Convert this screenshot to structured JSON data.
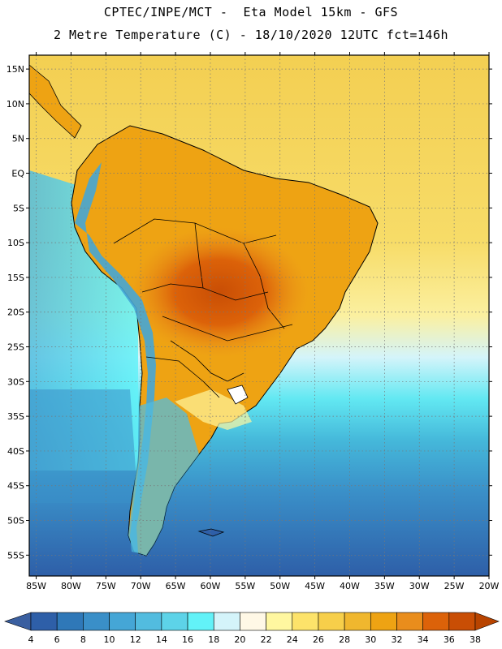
{
  "title": {
    "line1": "CPTEC/INPE/MCT -  Eta Model 15km - GFS",
    "line2": "2 Metre Temperature (C) - 18/10/2020 12UTC fct=146h"
  },
  "map": {
    "lat_range": [
      -58,
      17
    ],
    "lon_range": [
      -86,
      -20
    ],
    "lat_labels": [
      "15N",
      "10N",
      "5N",
      "EQ",
      "5S",
      "10S",
      "15S",
      "20S",
      "25S",
      "30S",
      "35S",
      "40S",
      "45S",
      "50S",
      "55S"
    ],
    "lat_values": [
      15,
      10,
      5,
      0,
      -5,
      -10,
      -15,
      -20,
      -25,
      -30,
      -35,
      -40,
      -45,
      -50,
      -55
    ],
    "lon_labels": [
      "85W",
      "80W",
      "75W",
      "70W",
      "65W",
      "60W",
      "55W",
      "50W",
      "45W",
      "40W",
      "35W",
      "30W",
      "25W",
      "20W"
    ],
    "lon_values": [
      -85,
      -80,
      -75,
      -70,
      -65,
      -60,
      -55,
      -50,
      -45,
      -40,
      -35,
      -30,
      -25,
      -20
    ]
  },
  "colorbar": {
    "labels": [
      "4",
      "6",
      "8",
      "10",
      "12",
      "14",
      "16",
      "18",
      "20",
      "22",
      "24",
      "26",
      "28",
      "30",
      "32",
      "34",
      "36",
      "38"
    ],
    "colors": [
      "#2e5fa8",
      "#2f78b8",
      "#3a8fc8",
      "#45a6d6",
      "#52bcdf",
      "#5dd3e8",
      "#62f2f8",
      "#d4f4fa",
      "#fff8e6",
      "#fff7a0",
      "#fde36a",
      "#f7cf4a",
      "#f0b72e",
      "#eea313",
      "#e98d1c",
      "#dc6209",
      "#c94e05"
    ],
    "under_color": "#3a5fa0",
    "over_color": "#b84400"
  }
}
